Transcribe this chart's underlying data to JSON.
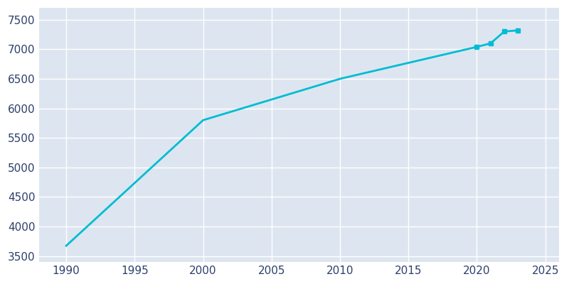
{
  "years": [
    1990,
    2000,
    2010,
    2020,
    2021,
    2022,
    2023
  ],
  "population": [
    3675,
    5800,
    6500,
    7040,
    7100,
    7300,
    7320
  ],
  "line_color": "#00BCD4",
  "marker_years": [
    2020,
    2021,
    2022,
    2023
  ],
  "plot_bg_color": "#dde6f0",
  "fig_bg_color": "#ffffff",
  "xlim": [
    1988,
    2026
  ],
  "ylim": [
    3400,
    7700
  ],
  "xticks": [
    1990,
    1995,
    2000,
    2005,
    2010,
    2015,
    2020,
    2025
  ],
  "yticks": [
    3500,
    4000,
    4500,
    5000,
    5500,
    6000,
    6500,
    7000,
    7500
  ],
  "line_width": 2.0,
  "marker_size": 4,
  "tick_color": "#2d3f6b",
  "tick_fontsize": 11,
  "grid_color": "#ffffff",
  "grid_linewidth": 1.0
}
